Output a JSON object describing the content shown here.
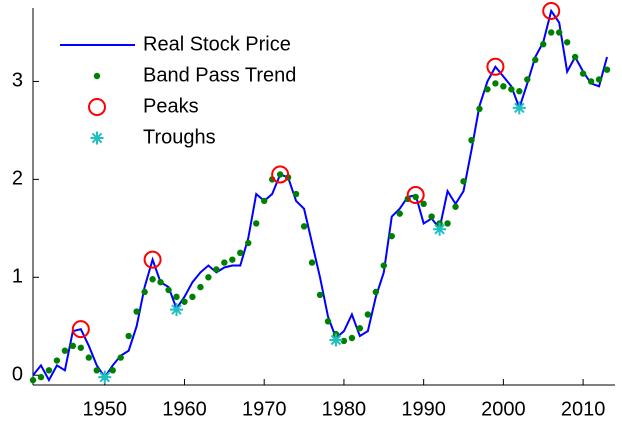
{
  "chart_data": {
    "type": "line",
    "x": [
      1941,
      1942,
      1943,
      1944,
      1945,
      1946,
      1947,
      1948,
      1949,
      1950,
      1951,
      1952,
      1953,
      1954,
      1955,
      1956,
      1957,
      1958,
      1959,
      1960,
      1961,
      1962,
      1963,
      1964,
      1965,
      1966,
      1967,
      1968,
      1969,
      1970,
      1971,
      1972,
      1973,
      1974,
      1975,
      1976,
      1977,
      1978,
      1979,
      1980,
      1981,
      1982,
      1983,
      1984,
      1985,
      1986,
      1987,
      1988,
      1989,
      1990,
      1991,
      1992,
      1993,
      1994,
      1995,
      1996,
      1997,
      1998,
      1999,
      2000,
      2001,
      2002,
      2003,
      2004,
      2005,
      2006,
      2007,
      2008,
      2009,
      2010,
      2011,
      2012,
      2013
    ],
    "series": [
      {
        "name": "Real Stock Price",
        "color": "#0000ff",
        "style": "line",
        "values": [
          0.0,
          0.1,
          -0.05,
          0.1,
          0.05,
          0.45,
          0.47,
          0.3,
          0.1,
          -0.02,
          0.1,
          0.2,
          0.25,
          0.5,
          0.9,
          1.18,
          0.95,
          0.9,
          0.68,
          0.8,
          0.95,
          1.05,
          1.12,
          1.05,
          1.1,
          1.12,
          1.12,
          1.4,
          1.85,
          1.78,
          1.85,
          2.05,
          2.02,
          1.78,
          1.7,
          1.35,
          1.0,
          0.6,
          0.38,
          0.45,
          0.62,
          0.4,
          0.45,
          0.8,
          1.05,
          1.62,
          1.7,
          1.82,
          1.84,
          1.55,
          1.6,
          1.5,
          1.88,
          1.75,
          1.88,
          2.3,
          2.75,
          3.0,
          3.15,
          3.05,
          2.95,
          2.73,
          2.98,
          3.25,
          3.4,
          3.72,
          3.6,
          3.1,
          3.25,
          3.1,
          2.98,
          2.95,
          3.25
        ]
      },
      {
        "name": "Band Pass Trend",
        "color": "#008000",
        "style": "dots",
        "values": [
          -0.05,
          -0.02,
          0.05,
          0.15,
          0.25,
          0.3,
          0.28,
          0.18,
          0.05,
          -0.02,
          0.05,
          0.18,
          0.4,
          0.65,
          0.85,
          0.98,
          0.95,
          0.87,
          0.8,
          0.75,
          0.8,
          0.9,
          1.0,
          1.08,
          1.15,
          1.18,
          1.25,
          1.35,
          1.55,
          1.78,
          2.0,
          2.05,
          2.02,
          1.85,
          1.52,
          1.15,
          0.82,
          0.55,
          0.42,
          0.35,
          0.38,
          0.48,
          0.62,
          0.85,
          1.12,
          1.42,
          1.65,
          1.8,
          1.82,
          1.75,
          1.62,
          1.55,
          1.55,
          1.72,
          1.98,
          2.4,
          2.72,
          2.92,
          2.98,
          2.95,
          2.92,
          2.9,
          3.02,
          3.22,
          3.38,
          3.5,
          3.5,
          3.4,
          3.25,
          3.08,
          3.0,
          3.02,
          3.12
        ]
      },
      {
        "name": "Peaks",
        "color": "#ff0000",
        "style": "circle",
        "x": [
          1947,
          1956,
          1972,
          1989,
          1999,
          2006
        ],
        "values": [
          0.47,
          1.18,
          2.05,
          1.84,
          3.15,
          3.72
        ]
      },
      {
        "name": "Troughs",
        "color": "#20c0c0",
        "style": "star",
        "x": [
          1950,
          1959,
          1979,
          1992,
          2002
        ],
        "values": [
          -0.02,
          0.67,
          0.36,
          1.49,
          2.73
        ]
      }
    ],
    "xlim": [
      1941,
      2014
    ],
    "xticks": [
      1950,
      1960,
      1970,
      1980,
      1990,
      2000,
      2010
    ],
    "ylim": [
      -0.1,
      3.75
    ],
    "yticks": [
      0,
      1,
      2,
      3
    ],
    "legend": "top-left",
    "grid": false
  }
}
